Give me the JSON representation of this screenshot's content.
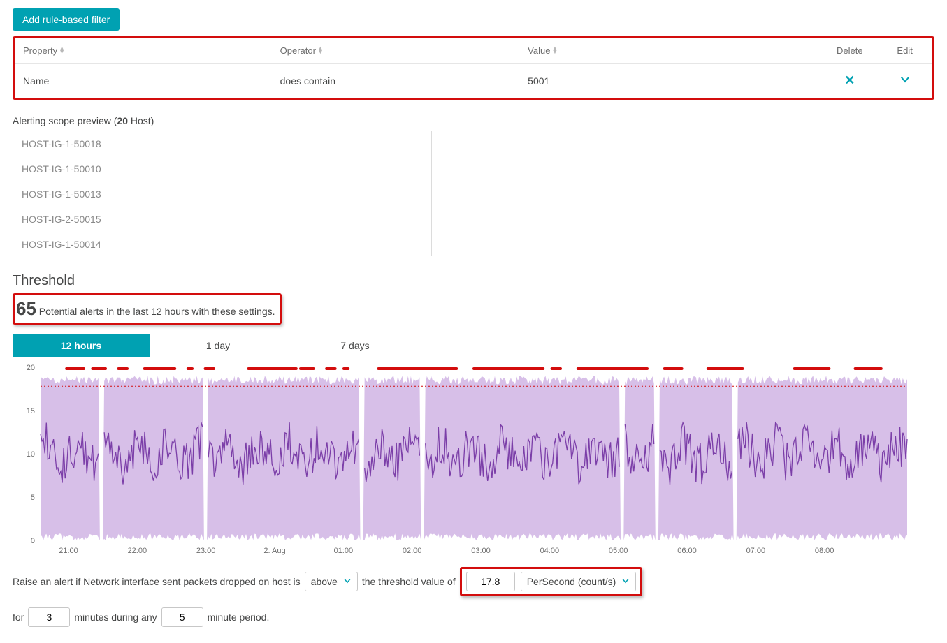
{
  "add_filter_button": "Add rule-based filter",
  "filter_table": {
    "headers": {
      "property": "Property",
      "operator": "Operator",
      "value": "Value",
      "delete": "Delete",
      "edit": "Edit"
    },
    "row": {
      "property": "Name",
      "operator": "does contain",
      "value": "5001"
    }
  },
  "scope_preview": {
    "label_prefix": "Alerting scope preview (",
    "count": "20",
    "label_suffix": " Host)",
    "items": [
      "HOST-IG-1-50018",
      "HOST-IG-1-50010",
      "HOST-IG-1-50013",
      "HOST-IG-2-50015",
      "HOST-IG-1-50014"
    ]
  },
  "threshold": {
    "title": "Threshold",
    "count": "65",
    "text": " Potential alerts in the last 12 hours with these settings."
  },
  "tabs": [
    "12 hours",
    "1 day",
    "7 days"
  ],
  "chart": {
    "y_ticks": [
      "0",
      "5",
      "10",
      "15",
      "20"
    ],
    "x_ticks": [
      "21:00",
      "22:00",
      "23:00",
      "2. Aug",
      "01:00",
      "02:00",
      "03:00",
      "04:00",
      "05:00",
      "06:00",
      "07:00",
      "08:00"
    ],
    "y_max": 20,
    "threshold_value": 17.8,
    "colors": {
      "area": "#c9a9e0",
      "line": "#7b3ea8",
      "threshold": "#d30d0d",
      "marker": "#d30d0d",
      "axis": "#6d6d6d"
    }
  },
  "sentence": {
    "prefix": "Raise an alert if Network interface sent packets dropped on host is",
    "comparator": "above",
    "mid": "the threshold value of",
    "threshold": "17.8",
    "unit": "PerSecond (count/s)",
    "for_label": "for",
    "for_value": "3",
    "during_label": "minutes during any",
    "during_value": "5",
    "period_label": "minute period."
  }
}
